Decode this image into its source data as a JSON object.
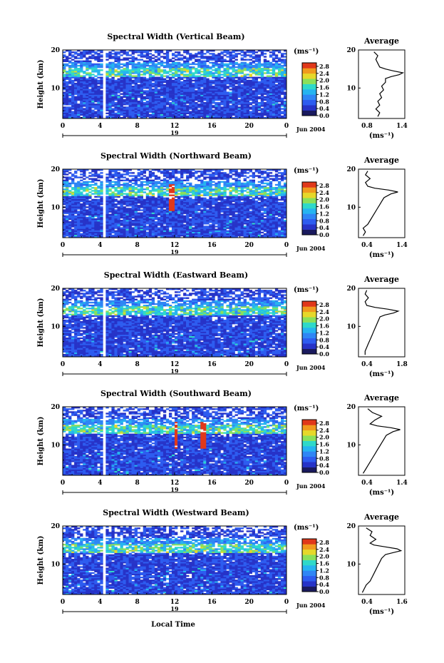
{
  "figure": {
    "xlabel": "Local Time",
    "date_label": "Jun 2004",
    "day_label": "19",
    "height_label": "Height (km)",
    "unit_label": "(ms⁻¹)",
    "average_title": "Average",
    "average_xlabel": "(ms⁻¹)"
  },
  "chart_data": [
    {
      "type": "heatmap",
      "title": "Spectral Width (Vertical Beam)",
      "xlabel": "",
      "ylabel": "Height (km)",
      "xlim": [
        0,
        24
      ],
      "ylim": [
        2,
        20
      ],
      "x_ticks": [
        "0",
        "4",
        "8",
        "12",
        "16",
        "20",
        "0"
      ],
      "y_ticks": [
        "10",
        "20"
      ],
      "colorbar_ticks": [
        "0.0",
        "0.4",
        "0.8",
        "1.2",
        "1.6",
        "2.0",
        "2.4",
        "2.8"
      ],
      "colorbar_range": [
        0,
        3.0
      ],
      "avg_profile": {
        "title": "Average",
        "xlim": [
          0.4,
          1.6
        ],
        "x_ticks": [
          "0.8",
          "1.4"
        ],
        "y_ticks": [
          "10",
          "20"
        ],
        "points": [
          [
            0.9,
            2.5
          ],
          [
            0.95,
            3.5
          ],
          [
            0.85,
            4.5
          ],
          [
            0.95,
            5.5
          ],
          [
            0.9,
            6.5
          ],
          [
            1.0,
            7.5
          ],
          [
            0.95,
            8.5
          ],
          [
            1.05,
            9.5
          ],
          [
            1.0,
            10.5
          ],
          [
            1.1,
            11.5
          ],
          [
            1.1,
            12.5
          ],
          [
            1.25,
            13.0
          ],
          [
            1.45,
            13.5
          ],
          [
            1.55,
            14.0
          ],
          [
            1.3,
            14.5
          ],
          [
            1.1,
            15.0
          ],
          [
            0.95,
            15.5
          ],
          [
            0.9,
            16.5
          ],
          [
            0.85,
            17.5
          ],
          [
            0.9,
            18.5
          ],
          [
            0.8,
            19.5
          ]
        ]
      }
    },
    {
      "type": "heatmap",
      "title": "Spectral Width (Northward Beam)",
      "xlabel": "",
      "ylabel": "Height (km)",
      "xlim": [
        0,
        24
      ],
      "ylim": [
        2,
        20
      ],
      "x_ticks": [
        "0",
        "4",
        "8",
        "12",
        "16",
        "20",
        "0"
      ],
      "y_ticks": [
        "10",
        "20"
      ],
      "colorbar_ticks": [
        "0.0",
        "0.4",
        "0.8",
        "1.2",
        "1.6",
        "2.0",
        "2.4",
        "2.8"
      ],
      "colorbar_range": [
        0,
        3.0
      ],
      "avg_profile": {
        "title": "Average",
        "xlim": [
          0.4,
          1.4
        ],
        "x_ticks": [
          "0.4",
          "1.4"
        ],
        "y_ticks": [
          "10",
          "20"
        ],
        "points": [
          [
            0.5,
            2.5
          ],
          [
            0.55,
            3.5
          ],
          [
            0.5,
            4.5
          ],
          [
            0.6,
            5.5
          ],
          [
            0.65,
            6.5
          ],
          [
            0.7,
            7.5
          ],
          [
            0.75,
            8.5
          ],
          [
            0.8,
            9.5
          ],
          [
            0.85,
            10.5
          ],
          [
            0.9,
            11.5
          ],
          [
            0.95,
            12.5
          ],
          [
            1.1,
            13.5
          ],
          [
            1.25,
            14.0
          ],
          [
            1.05,
            14.5
          ],
          [
            0.75,
            15.0
          ],
          [
            0.6,
            15.5
          ],
          [
            0.55,
            16.5
          ],
          [
            0.65,
            17.5
          ],
          [
            0.55,
            18.5
          ],
          [
            0.6,
            19.5
          ]
        ]
      }
    },
    {
      "type": "heatmap",
      "title": "Spectral Width (Eastward Beam)",
      "xlabel": "",
      "ylabel": "Height (km)",
      "xlim": [
        0,
        24
      ],
      "ylim": [
        2,
        20
      ],
      "x_ticks": [
        "0",
        "4",
        "8",
        "12",
        "16",
        "20",
        "0"
      ],
      "y_ticks": [
        "10",
        "20"
      ],
      "colorbar_ticks": [
        "0.0",
        "0.4",
        "0.8",
        "1.2",
        "1.6",
        "2.0",
        "2.4",
        "2.8"
      ],
      "colorbar_range": [
        0,
        3.0
      ],
      "avg_profile": {
        "title": "Average",
        "xlim": [
          0.4,
          1.8
        ],
        "x_ticks": [
          "0.4",
          "1.8"
        ],
        "y_ticks": [
          "10",
          "20"
        ],
        "points": [
          [
            0.6,
            2.5
          ],
          [
            0.6,
            3.5
          ],
          [
            0.65,
            4.5
          ],
          [
            0.7,
            5.5
          ],
          [
            0.75,
            6.5
          ],
          [
            0.8,
            7.5
          ],
          [
            0.85,
            8.5
          ],
          [
            0.9,
            9.5
          ],
          [
            0.95,
            10.5
          ],
          [
            1.0,
            11.5
          ],
          [
            1.05,
            12.5
          ],
          [
            1.2,
            13.0
          ],
          [
            1.45,
            13.5
          ],
          [
            1.6,
            14.0
          ],
          [
            1.3,
            14.5
          ],
          [
            0.9,
            15.0
          ],
          [
            0.65,
            15.5
          ],
          [
            0.6,
            16.5
          ],
          [
            0.7,
            17.5
          ],
          [
            0.6,
            18.5
          ],
          [
            0.65,
            19.5
          ]
        ]
      }
    },
    {
      "type": "heatmap",
      "title": "Spectral Width (Southward Beam)",
      "xlabel": "",
      "ylabel": "Height (km)",
      "xlim": [
        0,
        24
      ],
      "ylim": [
        2,
        20
      ],
      "x_ticks": [
        "0",
        "4",
        "8",
        "12",
        "16",
        "20",
        "0"
      ],
      "y_ticks": [
        "10",
        "20"
      ],
      "colorbar_ticks": [
        "0.0",
        "0.4",
        "0.8",
        "1.2",
        "1.6",
        "2.0",
        "2.4",
        "2.8"
      ],
      "colorbar_range": [
        0,
        3.0
      ],
      "avg_profile": {
        "title": "Average",
        "xlim": [
          0.4,
          1.4
        ],
        "x_ticks": [
          "0.4",
          "1.4"
        ],
        "y_ticks": [
          "10",
          "20"
        ],
        "points": [
          [
            0.5,
            2.5
          ],
          [
            0.55,
            3.5
          ],
          [
            0.6,
            4.5
          ],
          [
            0.65,
            5.5
          ],
          [
            0.7,
            6.5
          ],
          [
            0.75,
            7.5
          ],
          [
            0.8,
            8.5
          ],
          [
            0.85,
            9.5
          ],
          [
            0.9,
            10.5
          ],
          [
            0.95,
            11.5
          ],
          [
            1.0,
            12.5
          ],
          [
            1.15,
            13.5
          ],
          [
            1.3,
            14.0
          ],
          [
            1.1,
            14.5
          ],
          [
            0.8,
            15.0
          ],
          [
            0.65,
            15.5
          ],
          [
            0.75,
            16.5
          ],
          [
            0.9,
            17.5
          ],
          [
            0.7,
            18.5
          ],
          [
            0.6,
            19.5
          ]
        ]
      }
    },
    {
      "type": "heatmap",
      "title": "Spectral Width (Westward Beam)",
      "xlabel": "Local Time",
      "ylabel": "Height (km)",
      "xlim": [
        0,
        24
      ],
      "ylim": [
        2,
        20
      ],
      "x_ticks": [
        "0",
        "4",
        "8",
        "12",
        "16",
        "20",
        "0"
      ],
      "y_ticks": [
        "10",
        "20"
      ],
      "colorbar_ticks": [
        "0.0",
        "0.4",
        "0.8",
        "1.2",
        "1.6",
        "2.0",
        "2.4",
        "2.8"
      ],
      "colorbar_range": [
        0,
        3.0
      ],
      "avg_profile": {
        "title": "Average",
        "xlim": [
          0.4,
          1.6
        ],
        "x_ticks": [
          "0.4",
          "1.6"
        ],
        "y_ticks": [
          "10",
          "20"
        ],
        "points": [
          [
            0.5,
            2.5
          ],
          [
            0.55,
            3.5
          ],
          [
            0.6,
            4.5
          ],
          [
            0.7,
            5.5
          ],
          [
            0.75,
            6.5
          ],
          [
            0.8,
            7.5
          ],
          [
            0.85,
            8.5
          ],
          [
            0.9,
            9.5
          ],
          [
            0.95,
            10.5
          ],
          [
            1.0,
            11.5
          ],
          [
            1.1,
            12.5
          ],
          [
            1.3,
            13.0
          ],
          [
            1.5,
            13.5
          ],
          [
            1.4,
            14.0
          ],
          [
            1.1,
            14.5
          ],
          [
            0.8,
            15.0
          ],
          [
            0.7,
            15.5
          ],
          [
            0.85,
            16.5
          ],
          [
            0.7,
            17.5
          ],
          [
            0.75,
            18.5
          ],
          [
            0.6,
            19.5
          ]
        ]
      }
    }
  ],
  "colors": {
    "colormap": [
      "#1a1a5e",
      "#2633c8",
      "#2d5cf0",
      "#2f86f5",
      "#26b4f0",
      "#2fd9c9",
      "#8be05a",
      "#e6d82a",
      "#f09a1e",
      "#e0381a"
    ]
  }
}
